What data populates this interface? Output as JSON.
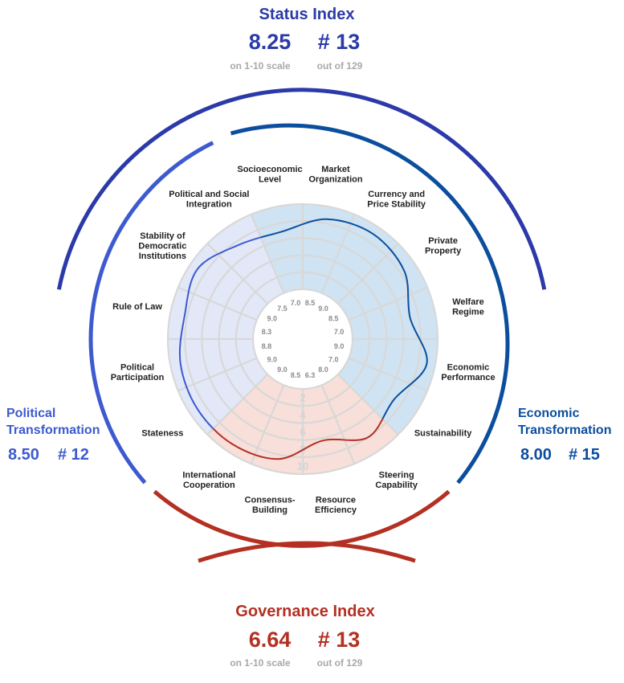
{
  "status": {
    "title": "Status Index",
    "score": "8.25",
    "rank": "# 13",
    "score_note": "on 1-10 scale",
    "rank_note": "out of 129",
    "color": "#2b3aa8"
  },
  "governance": {
    "title": "Governance Index",
    "score": "6.64",
    "rank": "# 13",
    "score_note": "on 1-10 scale",
    "rank_note": "out of 129",
    "color": "#b33022"
  },
  "political": {
    "title_line1": "Political",
    "title_line2": "Transformation",
    "score": "8.50",
    "rank": "# 12",
    "color": "#3d5ad0"
  },
  "economic": {
    "title_line1": "Economic",
    "title_line2": "Transformation",
    "score": "8.00",
    "rank": "# 15",
    "color": "#0c4e9e"
  },
  "chart_data": {
    "type": "radar",
    "scale_ticks": [
      "2",
      "4",
      "6",
      "8",
      "10"
    ],
    "rmax": 10,
    "categories": [
      {
        "label": [
          "Market",
          "Organization"
        ],
        "value": 8.5,
        "label_text": "8.5",
        "group": "economic"
      },
      {
        "label": [
          "Currency and",
          "Price Stability"
        ],
        "value": 9.0,
        "label_text": "9.0",
        "group": "economic"
      },
      {
        "label": [
          "Private",
          "Property"
        ],
        "value": 8.5,
        "label_text": "8.5",
        "group": "economic"
      },
      {
        "label": [
          "Welfare",
          "Regime"
        ],
        "value": 7.0,
        "label_text": "7.0",
        "group": "economic"
      },
      {
        "label": [
          "Economic",
          "Performance"
        ],
        "value": 9.0,
        "label_text": "9.0",
        "group": "economic"
      },
      {
        "label": [
          "Sustainability"
        ],
        "value": 7.0,
        "label_text": "7.0",
        "group": "economic"
      },
      {
        "label": [
          "Steering",
          "Capability"
        ],
        "value": 8.0,
        "label_text": "8.0",
        "group": "governance"
      },
      {
        "label": [
          "Resource",
          "Efficiency"
        ],
        "value": 6.3,
        "label_text": "6.3",
        "group": "governance"
      },
      {
        "label": [
          "Consensus-",
          "Building"
        ],
        "value": 8.5,
        "label_text": "8.5",
        "group": "governance"
      },
      {
        "label": [
          "International",
          "Cooperation"
        ],
        "value": 9.0,
        "label_text": "9.0",
        "group": "governance"
      },
      {
        "label": [
          "Stateness"
        ],
        "value": 9.0,
        "label_text": "9.0",
        "group": "political"
      },
      {
        "label": [
          "Political",
          "Participation"
        ],
        "value": 8.8,
        "label_text": "8.8",
        "group": "political"
      },
      {
        "label": [
          "Rule of Law"
        ],
        "value": 8.3,
        "label_text": "8.3",
        "group": "political"
      },
      {
        "label": [
          "Stability of",
          "Democratic",
          "Institutions"
        ],
        "value": 9.0,
        "label_text": "9.0",
        "group": "political"
      },
      {
        "label": [
          "Political and Social",
          "Integration"
        ],
        "value": 7.5,
        "label_text": "7.5",
        "group": "political"
      },
      {
        "label": [
          "Socioeconomic",
          "Level"
        ],
        "value": 7.0,
        "label_text": "7.0",
        "group": "economic"
      }
    ]
  }
}
